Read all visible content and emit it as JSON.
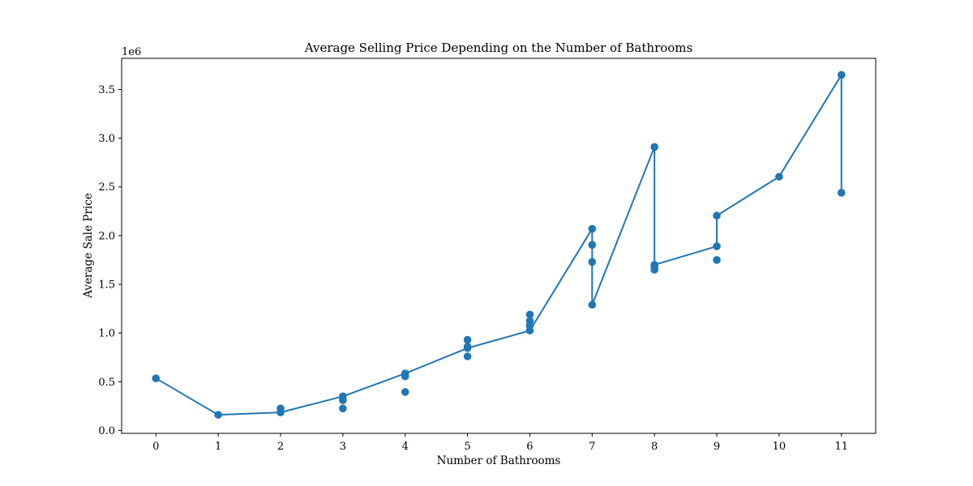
{
  "chart_data": {
    "type": "line",
    "title": "Average Selling Price Depending on the Number of Bathrooms",
    "xlabel": "Number of Bathrooms",
    "ylabel": "Average Sale Price",
    "y_offset_label": "1e6",
    "xlim": [
      -0.55,
      11.55
    ],
    "ylim": [
      -0.03,
      3.82
    ],
    "x_ticks": [
      0,
      1,
      2,
      3,
      4,
      5,
      6,
      7,
      8,
      9,
      10,
      11
    ],
    "x_tick_labels": [
      "0",
      "1",
      "2",
      "3",
      "4",
      "5",
      "6",
      "7",
      "8",
      "9",
      "10",
      "11"
    ],
    "y_ticks": [
      0.0,
      0.5,
      1.0,
      1.5,
      2.0,
      2.5,
      3.0,
      3.5
    ],
    "y_tick_labels": [
      "0.0",
      "0.5",
      "1.0",
      "1.5",
      "2.0",
      "2.5",
      "3.0",
      "3.5"
    ],
    "grid": false,
    "color": "#1f77b4",
    "series": [
      {
        "x": [
          0,
          1,
          2,
          2,
          3,
          3,
          3,
          4,
          4,
          4,
          5,
          5,
          5,
          5,
          6,
          6,
          6,
          6,
          7,
          7,
          7,
          7,
          8,
          8,
          8,
          8,
          9,
          9,
          9,
          10,
          11,
          11
        ],
        "y": [
          0.535,
          0.16,
          0.225,
          0.185,
          0.225,
          0.31,
          0.35,
          0.395,
          0.555,
          0.585,
          0.76,
          0.845,
          0.86,
          0.93,
          1.025,
          1.075,
          1.125,
          1.19,
          1.29,
          1.73,
          1.905,
          2.07,
          2.91,
          1.65,
          1.68,
          1.7,
          1.75,
          1.89,
          2.205,
          2.605,
          2.44,
          3.65
        ],
        "line_path": [
          [
            0,
            0.535
          ],
          [
            1,
            0.16
          ],
          [
            2,
            0.185
          ],
          [
            3,
            0.35
          ],
          [
            4,
            0.585
          ],
          [
            5,
            0.845
          ],
          [
            6,
            1.025
          ],
          [
            7,
            2.07
          ],
          [
            7,
            1.29
          ],
          [
            8,
            2.91
          ],
          [
            8,
            1.7
          ],
          [
            9,
            1.89
          ],
          [
            9,
            2.205
          ],
          [
            10,
            2.605
          ],
          [
            11,
            3.65
          ],
          [
            11,
            2.44
          ]
        ]
      }
    ]
  }
}
